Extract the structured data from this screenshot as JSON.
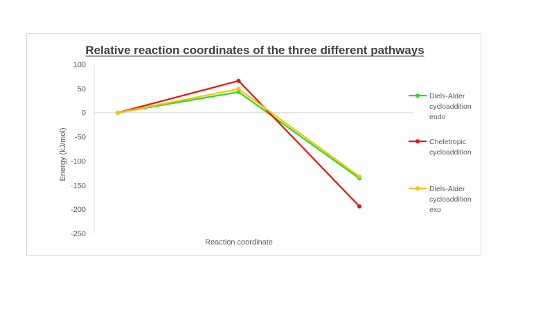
{
  "chart_data": {
    "type": "line",
    "title": "Relative reaction coordinates of the three different pathways",
    "xlabel": "Reaction coordinate",
    "ylabel": "Energy (kJ/mol)",
    "ylim": [
      -250,
      100
    ],
    "yticks": [
      100,
      50,
      0,
      -50,
      -100,
      -150,
      -200,
      -250
    ],
    "x": [
      1,
      2,
      3
    ],
    "grid": false,
    "legend_position": "right",
    "series": [
      {
        "name": "Diels-Alder cycloaddition endo",
        "legend_lines": [
          "Diels-Alder",
          "cycloaddition",
          "endo"
        ],
        "color": "#22dd22",
        "values": [
          0,
          43,
          -136
        ]
      },
      {
        "name": "Cheletropic cycloaddition",
        "legend_lines": [
          "Cheletropic",
          "cycloaddition"
        ],
        "color": "#ee1111",
        "values": [
          0,
          66,
          -194
        ]
      },
      {
        "name": "Diels-Alder cycloaddition exo",
        "legend_lines": [
          "Diels-Alder",
          "cycloaddition",
          "exo"
        ],
        "color": "#ffc000",
        "values": [
          0,
          49,
          -132
        ]
      }
    ]
  }
}
